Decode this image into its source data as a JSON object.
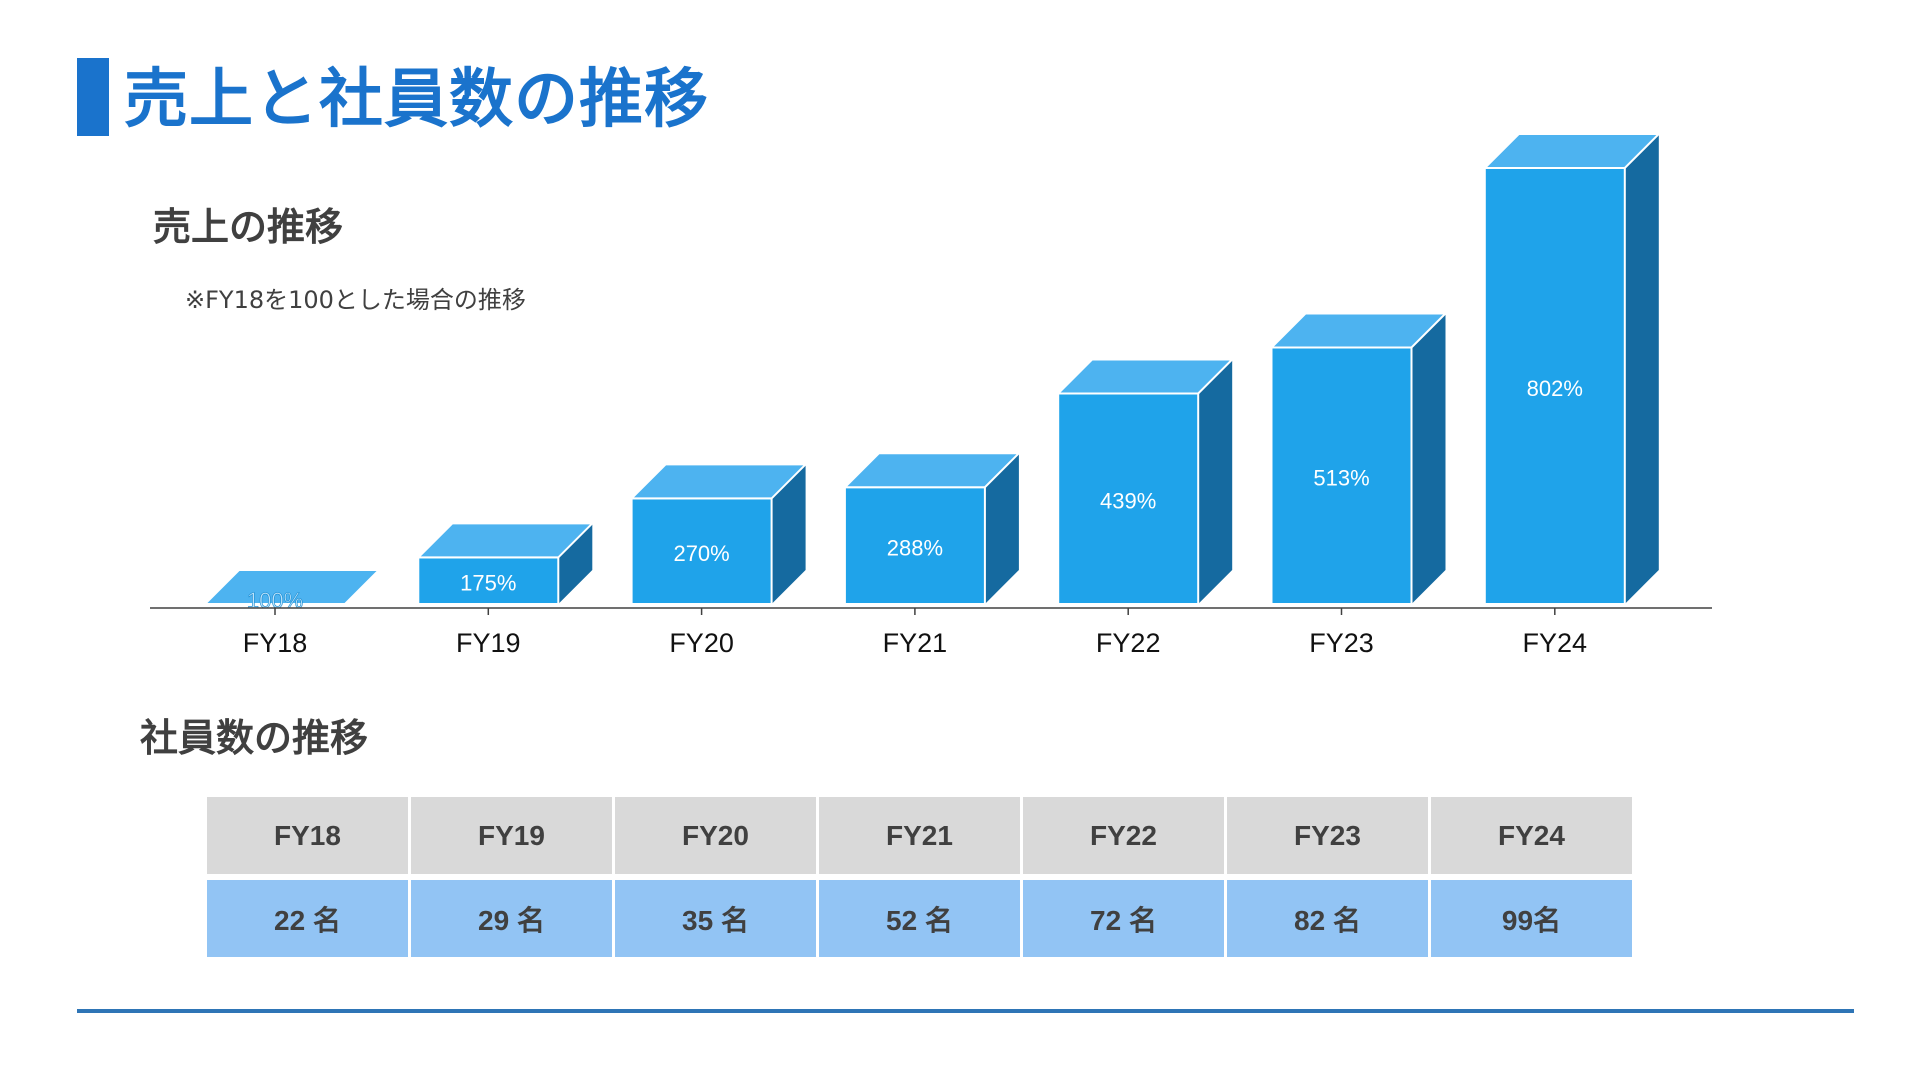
{
  "header": {
    "title": "売上と社員数の推移"
  },
  "sales": {
    "title": "売上の推移",
    "note": "※FY18を100とした場合の推移"
  },
  "employees": {
    "title": "社員数の推移",
    "headers": [
      "FY18",
      "FY19",
      "FY20",
      "FY21",
      "FY22",
      "FY23",
      "FY24"
    ],
    "values": [
      "22 名",
      "29 名",
      "35 名",
      "52 名",
      "72 名",
      "82 名",
      "99名"
    ]
  },
  "colors": {
    "accent": "#1A73CC",
    "bar_front": "#1FA3EA",
    "bar_top": "#4DB3F0",
    "bar_side": "#156AA0",
    "table_header": "#D9D9D9",
    "table_values": "#92C4F4",
    "bottom_rule": "#2E75B6"
  },
  "chart_data": {
    "type": "bar",
    "categories": [
      "FY18",
      "FY19",
      "FY20",
      "FY21",
      "FY22",
      "FY23",
      "FY24"
    ],
    "values": [
      100,
      175,
      270,
      288,
      439,
      513,
      802
    ],
    "labels": [
      "100%",
      "175%",
      "270%",
      "288%",
      "439%",
      "513%",
      "802%"
    ],
    "title": "売上の推移",
    "xlabel": "",
    "ylabel": "",
    "ylim": [
      100,
      802
    ],
    "style": "3d-column",
    "grid": false
  }
}
